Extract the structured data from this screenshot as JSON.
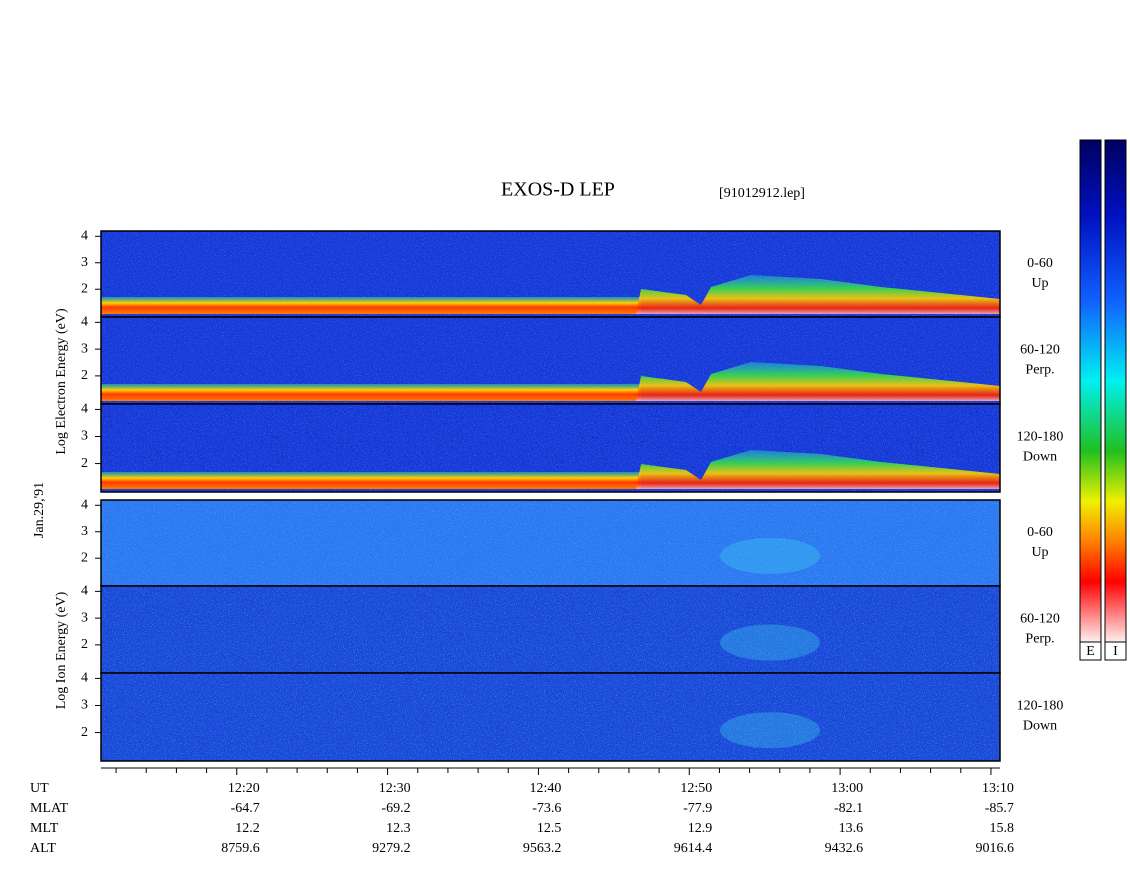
{
  "chart_data": {
    "type": "spectrogram",
    "title": "EXOS-D LEP",
    "subtitle": "[91012912.lep]",
    "date_label": "Jan.29,'91",
    "ylim": [
      0.95,
      4.2
    ],
    "yticks": [
      2,
      3,
      4
    ],
    "xlim": [
      731,
      790.6
    ],
    "xticks": [
      {
        "value": 740,
        "label": "12:20"
      },
      {
        "value": 750,
        "label": "12:30"
      },
      {
        "value": 760,
        "label": "12:40"
      },
      {
        "value": 770,
        "label": "12:50"
      },
      {
        "value": 780,
        "label": "13:00"
      },
      {
        "value": 790,
        "label": "13:10"
      }
    ],
    "xminor": [
      732,
      734,
      736,
      738,
      742,
      744,
      746,
      748,
      752,
      754,
      756,
      758,
      762,
      764,
      766,
      768,
      772,
      774,
      776,
      778,
      782,
      784,
      786,
      788
    ],
    "xlabel": "UT",
    "groups": [
      {
        "ylabel": "Log  Electron  Energy (eV)",
        "panels": [
          {
            "angle": "0-60",
            "direction": "Up"
          },
          {
            "angle": "60-120",
            "direction": "Perp."
          },
          {
            "angle": "120-180",
            "direction": "Down"
          }
        ]
      },
      {
        "ylabel": "Log  Ion  Energy (eV)",
        "panels": [
          {
            "angle": "0-60",
            "direction": "Up"
          },
          {
            "angle": "60-120",
            "direction": "Perp."
          },
          {
            "angle": "120-180",
            "direction": "Down"
          }
        ]
      }
    ],
    "ephemeris": [
      {
        "name": "MLAT",
        "values": [
          "-64.7",
          "-69.2",
          "-73.6",
          "-77.9",
          "-82.1",
          "-85.7"
        ]
      },
      {
        "name": "MLT",
        "values": [
          "12.2",
          "12.3",
          "12.5",
          "12.9",
          "13.6",
          "15.8"
        ]
      },
      {
        "name": "ALT",
        "values": [
          "8759.6",
          "9279.2",
          "9563.2",
          "9614.4",
          "9432.6",
          "9016.6"
        ]
      }
    ],
    "colorbars": [
      "E",
      "I"
    ]
  }
}
